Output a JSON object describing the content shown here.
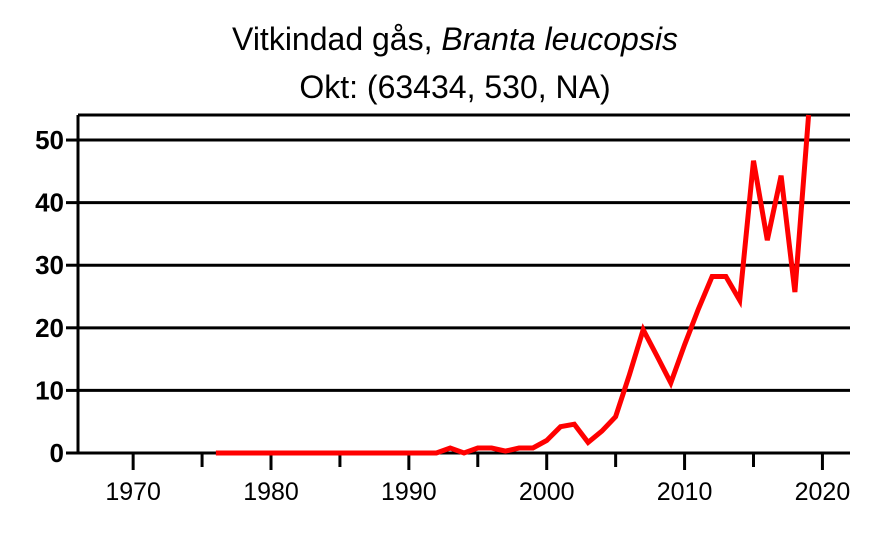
{
  "chart_data": {
    "type": "line",
    "title": "Vitkindad gås, ",
    "title_species": "Branta leucopsis",
    "subtitle": "Okt: (63434, 530, NA)",
    "xlabel": "",
    "ylabel": "",
    "xlim": [
      1966,
      2022
    ],
    "ylim": [
      0,
      54
    ],
    "xticks": [
      1970,
      1980,
      1990,
      2000,
      2010,
      2020
    ],
    "yticks": [
      0,
      10,
      20,
      30,
      40,
      50
    ],
    "grid": "horizontal",
    "legend": "none",
    "series": [
      {
        "color": "#ff0000",
        "x": [
          1976,
          1977,
          1978,
          1979,
          1980,
          1981,
          1982,
          1983,
          1984,
          1985,
          1986,
          1987,
          1988,
          1989,
          1990,
          1991,
          1992,
          1993,
          1994,
          1995,
          1996,
          1997,
          1998,
          1999,
          2000,
          2001,
          2002,
          2003,
          2004,
          2005,
          2006,
          2007,
          2008,
          2009,
          2010,
          2011,
          2012,
          2013,
          2014,
          2015,
          2016,
          2017,
          2018,
          2019
        ],
        "values": [
          0,
          0,
          0,
          0,
          0,
          0,
          0,
          0,
          0,
          0,
          0,
          0,
          0,
          0,
          0,
          0,
          0,
          0.8,
          0,
          0.8,
          0.8,
          0.3,
          0.8,
          0.8,
          2,
          4.2,
          4.6,
          1.7,
          3.5,
          5.8,
          12.5,
          19.7,
          15.5,
          11.2,
          17.3,
          23,
          28.2,
          28.2,
          24.4,
          46.7,
          34,
          44.3,
          25.7,
          54
        ]
      }
    ]
  }
}
